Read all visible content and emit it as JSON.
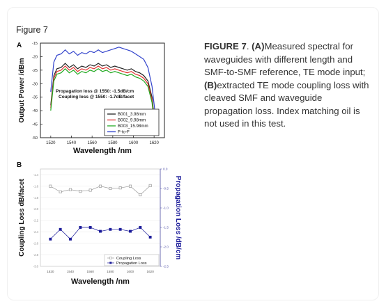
{
  "figure_label": "Figure 7",
  "caption": {
    "fig": "FIGURE 7",
    "sep": ". ",
    "a_tag": "(A)",
    "a_text": "Measured spectral for waveguides with different length and SMF-to-SMF reference, TE mode input; ",
    "b_tag": "(B)",
    "b_text": "extracted TE mode coupling loss with cleaved SMF and waveguide propagation loss. Index matching oil is not used in this test."
  },
  "chart_data": [
    {
      "panel": "A",
      "type": "line",
      "xlabel": "Wavelength  /nm",
      "ylabel": "Output Power /dBm",
      "xlim": [
        1510,
        1630
      ],
      "ylim": [
        -50,
        -15
      ],
      "xticks": [
        1520,
        1540,
        1560,
        1580,
        1600,
        1620
      ],
      "yticks": [
        -15,
        -20,
        -25,
        -30,
        -35,
        -40,
        -45,
        -50
      ],
      "annotations": [
        "Propagation loss @ 1550: -1.5dB/cm",
        "Coupling loss @ 1550: -1.7dB/facet"
      ],
      "legend_position": "bottom-right",
      "series": [
        {
          "name": "B001_3.98mm",
          "color": "#222222",
          "x": [
            1520,
            1523,
            1526,
            1530,
            1534,
            1538,
            1542,
            1546,
            1550,
            1554,
            1558,
            1562,
            1566,
            1570,
            1574,
            1578,
            1582,
            1586,
            1590,
            1594,
            1598,
            1602,
            1606,
            1610,
            1614,
            1618,
            1621
          ],
          "y": [
            -38,
            -27,
            -24.5,
            -24,
            -22.5,
            -24,
            -23,
            -24.5,
            -23.5,
            -24,
            -23,
            -23.5,
            -22.5,
            -23.5,
            -23,
            -24,
            -23.5,
            -24,
            -24.5,
            -25,
            -24.5,
            -25.5,
            -26,
            -27,
            -29,
            -35,
            -46
          ]
        },
        {
          "name": "B002_9.98mm",
          "color": "#e03030",
          "x": [
            1520,
            1523,
            1526,
            1530,
            1534,
            1538,
            1542,
            1546,
            1550,
            1554,
            1558,
            1562,
            1566,
            1570,
            1574,
            1578,
            1582,
            1586,
            1590,
            1594,
            1598,
            1602,
            1606,
            1610,
            1614,
            1618,
            1621
          ],
          "y": [
            -39,
            -28,
            -25.5,
            -25,
            -23.5,
            -25,
            -24,
            -25.5,
            -24.5,
            -25,
            -24,
            -24.5,
            -23.5,
            -24.5,
            -24,
            -25,
            -24.5,
            -25,
            -25.5,
            -26,
            -25.5,
            -26.5,
            -27,
            -28,
            -30,
            -36,
            -47
          ]
        },
        {
          "name": "B003_15.98mm",
          "color": "#22aa22",
          "x": [
            1520,
            1523,
            1526,
            1530,
            1534,
            1538,
            1542,
            1546,
            1550,
            1554,
            1558,
            1562,
            1566,
            1570,
            1574,
            1578,
            1582,
            1586,
            1590,
            1594,
            1598,
            1602,
            1606,
            1610,
            1614,
            1618,
            1621
          ],
          "y": [
            -40,
            -29,
            -26.5,
            -26,
            -24.5,
            -26,
            -25,
            -26.5,
            -25.5,
            -26,
            -25,
            -25.5,
            -24.5,
            -25.5,
            -25,
            -26,
            -25.5,
            -26,
            -26.5,
            -27,
            -26.5,
            -27.5,
            -28,
            -29,
            -31,
            -37,
            -48
          ]
        },
        {
          "name": "F-to-F",
          "color": "#3344cc",
          "x": [
            1520,
            1523,
            1526,
            1530,
            1534,
            1538,
            1542,
            1546,
            1550,
            1554,
            1558,
            1562,
            1566,
            1570,
            1574,
            1578,
            1582,
            1586,
            1590,
            1594,
            1598,
            1602,
            1606,
            1610,
            1614,
            1618,
            1621
          ],
          "y": [
            -33,
            -22,
            -19.5,
            -19,
            -17.5,
            -19,
            -18,
            -19.5,
            -18.5,
            -19,
            -18,
            -18.5,
            -17.5,
            -18.5,
            -18,
            -17.5,
            -17,
            -16.5,
            -17,
            -17.5,
            -18,
            -19,
            -20,
            -21,
            -24,
            -31,
            -41
          ]
        }
      ]
    },
    {
      "panel": "B",
      "type": "line",
      "xlabel": "Wavelength /nm",
      "ylabel_left": "Coupling Loss dB/facet",
      "ylabel_right": "Propagation Loss /dB/cm",
      "xlim": [
        1510,
        1630
      ],
      "ylim_left": [
        -3.0,
        -1.3
      ],
      "ylim_right": [
        -2.5,
        0.0
      ],
      "xticks": [
        1520,
        1540,
        1560,
        1580,
        1600,
        1620
      ],
      "yticks_left": [
        -1.4,
        -1.6,
        -1.8,
        -2.0,
        -2.2,
        -2.4,
        -2.6,
        -2.8,
        -3.0
      ],
      "yticks_right": [
        0.0,
        -0.5,
        -1.0,
        -1.5,
        -2.0,
        -2.5
      ],
      "legend_position": "bottom-right",
      "series": [
        {
          "name": "Coupling Loss",
          "axis": "left",
          "color": "#999999",
          "marker": "open-square",
          "x": [
            1520,
            1530,
            1540,
            1550,
            1560,
            1570,
            1580,
            1590,
            1600,
            1610,
            1620
          ],
          "y": [
            -1.6,
            -1.7,
            -1.66,
            -1.69,
            -1.67,
            -1.6,
            -1.64,
            -1.63,
            -1.6,
            -1.75,
            -1.59
          ]
        },
        {
          "name": "Propagation Loss",
          "axis": "right",
          "color": "#1a1a99",
          "marker": "filled-square",
          "x": [
            1520,
            1530,
            1540,
            1550,
            1560,
            1570,
            1580,
            1590,
            1600,
            1610,
            1620
          ],
          "y": [
            -1.8,
            -1.55,
            -1.8,
            -1.5,
            -1.5,
            -1.6,
            -1.55,
            -1.55,
            -1.6,
            -1.5,
            -1.75
          ]
        }
      ]
    }
  ]
}
